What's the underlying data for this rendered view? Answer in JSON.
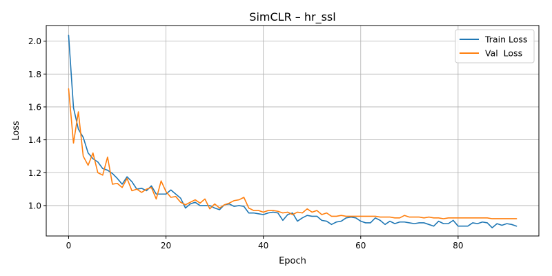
{
  "chart_data": {
    "type": "line",
    "title": "SimCLR – hr_ssl",
    "xlabel": "Epoch",
    "ylabel": "Loss",
    "xlim": [
      -4.6,
      96.6
    ],
    "ylim": [
      0.815,
      2.095
    ],
    "xticks": [
      0,
      20,
      40,
      60,
      80
    ],
    "yticks": [
      1.0,
      1.2,
      1.4,
      1.6,
      1.8,
      2.0
    ],
    "ytick_labels": [
      "1.0",
      "1.2",
      "1.4",
      "1.6",
      "1.8",
      "2.0"
    ],
    "grid": true,
    "legend_position": "top-right",
    "x": [
      0,
      1,
      2,
      3,
      4,
      5,
      6,
      7,
      8,
      9,
      10,
      11,
      12,
      13,
      14,
      15,
      16,
      17,
      18,
      19,
      20,
      21,
      22,
      23,
      24,
      25,
      26,
      27,
      28,
      29,
      30,
      31,
      32,
      33,
      34,
      35,
      36,
      37,
      38,
      39,
      40,
      41,
      42,
      43,
      44,
      45,
      46,
      47,
      48,
      49,
      50,
      51,
      52,
      53,
      54,
      55,
      56,
      57,
      58,
      59,
      60,
      61,
      62,
      63,
      64,
      65,
      66,
      67,
      68,
      69,
      70,
      71,
      72,
      73,
      74,
      75,
      76,
      77,
      78,
      79,
      80,
      81,
      82,
      83,
      84,
      85,
      86,
      87,
      88,
      89,
      90,
      91,
      92
    ],
    "series": [
      {
        "name": "Train Loss",
        "color": "#1f77b4",
        "values": [
          2.035,
          1.595,
          1.465,
          1.415,
          1.32,
          1.285,
          1.265,
          1.225,
          1.215,
          1.195,
          1.165,
          1.13,
          1.175,
          1.145,
          1.1,
          1.105,
          1.09,
          1.12,
          1.07,
          1.07,
          1.07,
          1.095,
          1.07,
          1.045,
          0.985,
          1.01,
          1.02,
          1.0,
          1.0,
          1.0,
          0.985,
          0.975,
          1.005,
          1.01,
          0.995,
          1.0,
          0.995,
          0.955,
          0.955,
          0.95,
          0.945,
          0.955,
          0.96,
          0.955,
          0.91,
          0.945,
          0.955,
          0.905,
          0.925,
          0.94,
          0.935,
          0.935,
          0.91,
          0.905,
          0.885,
          0.9,
          0.905,
          0.925,
          0.93,
          0.925,
          0.905,
          0.895,
          0.895,
          0.925,
          0.91,
          0.885,
          0.905,
          0.89,
          0.9,
          0.9,
          0.895,
          0.89,
          0.895,
          0.895,
          0.885,
          0.875,
          0.905,
          0.89,
          0.89,
          0.91,
          0.875,
          0.875,
          0.875,
          0.895,
          0.89,
          0.9,
          0.895,
          0.865,
          0.89,
          0.88,
          0.89,
          0.885,
          0.875
        ]
      },
      {
        "name": "Val  Loss",
        "color": "#ff7f0e",
        "values": [
          1.71,
          1.38,
          1.57,
          1.3,
          1.245,
          1.32,
          1.2,
          1.185,
          1.295,
          1.13,
          1.135,
          1.11,
          1.165,
          1.09,
          1.1,
          1.08,
          1.1,
          1.11,
          1.04,
          1.15,
          1.085,
          1.05,
          1.055,
          1.02,
          1.005,
          1.02,
          1.035,
          1.015,
          1.04,
          0.98,
          1.01,
          0.985,
          1.005,
          1.015,
          1.03,
          1.035,
          1.05,
          0.985,
          0.97,
          0.97,
          0.96,
          0.97,
          0.97,
          0.965,
          0.955,
          0.96,
          0.945,
          0.96,
          0.955,
          0.98,
          0.96,
          0.97,
          0.945,
          0.955,
          0.935,
          0.935,
          0.94,
          0.935,
          0.935,
          0.935,
          0.935,
          0.935,
          0.935,
          0.935,
          0.93,
          0.93,
          0.93,
          0.925,
          0.925,
          0.94,
          0.93,
          0.93,
          0.93,
          0.925,
          0.93,
          0.925,
          0.925,
          0.92,
          0.925,
          0.925,
          0.925,
          0.925,
          0.925,
          0.925,
          0.925,
          0.925,
          0.925,
          0.92,
          0.92,
          0.92,
          0.92,
          0.92,
          0.92
        ]
      }
    ]
  }
}
